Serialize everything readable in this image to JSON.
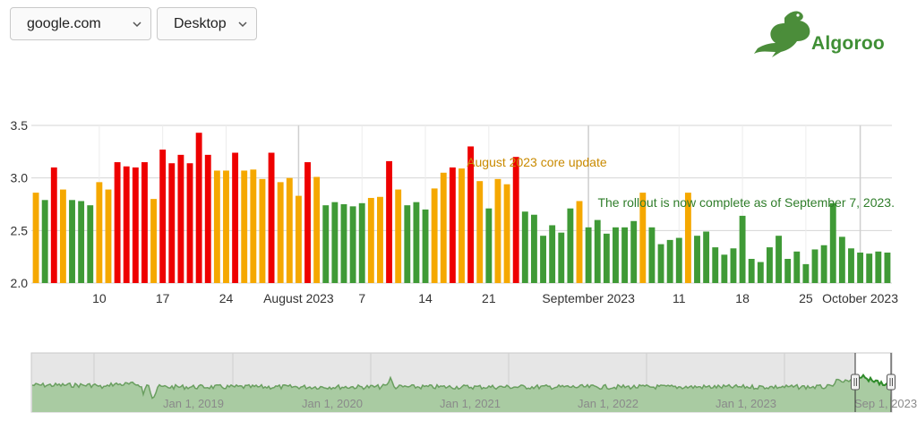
{
  "controls": {
    "site": "google.com",
    "device": "Desktop"
  },
  "logo": {
    "text": "Algoroo",
    "icon": "kangaroo-icon"
  },
  "colors": {
    "red": "#ee0000",
    "orange": "#f5a800",
    "green": "#3f9a36",
    "annotation_orange": "#c98a00",
    "annotation_green": "#2f7d2a"
  },
  "chart_data": {
    "type": "bar",
    "ylim": [
      2.0,
      3.5
    ],
    "yticks": [
      2.0,
      2.5,
      3.0,
      3.5
    ],
    "grid": true,
    "xticks": [
      {
        "label": "10",
        "index": 7
      },
      {
        "label": "17",
        "index": 14
      },
      {
        "label": "24",
        "index": 21
      },
      {
        "label": "August 2023",
        "index": 29
      },
      {
        "label": "7",
        "index": 36
      },
      {
        "label": "14",
        "index": 43
      },
      {
        "label": "21",
        "index": 50
      },
      {
        "label": "September 2023",
        "index": 61
      },
      {
        "label": "11",
        "index": 71
      },
      {
        "label": "18",
        "index": 78
      },
      {
        "label": "25",
        "index": 85
      },
      {
        "label": "October 2023",
        "index": 91
      }
    ],
    "bars": [
      {
        "v": 2.86,
        "c": "orange"
      },
      {
        "v": 2.79,
        "c": "green"
      },
      {
        "v": 3.1,
        "c": "red"
      },
      {
        "v": 2.89,
        "c": "orange"
      },
      {
        "v": 2.79,
        "c": "green"
      },
      {
        "v": 2.78,
        "c": "green"
      },
      {
        "v": 2.74,
        "c": "green"
      },
      {
        "v": 2.96,
        "c": "orange"
      },
      {
        "v": 2.89,
        "c": "orange"
      },
      {
        "v": 3.15,
        "c": "red"
      },
      {
        "v": 3.11,
        "c": "red"
      },
      {
        "v": 3.1,
        "c": "red"
      },
      {
        "v": 3.15,
        "c": "red"
      },
      {
        "v": 2.8,
        "c": "orange"
      },
      {
        "v": 3.27,
        "c": "red"
      },
      {
        "v": 3.14,
        "c": "red"
      },
      {
        "v": 3.22,
        "c": "red"
      },
      {
        "v": 3.14,
        "c": "red"
      },
      {
        "v": 3.43,
        "c": "red"
      },
      {
        "v": 3.22,
        "c": "red"
      },
      {
        "v": 3.07,
        "c": "orange"
      },
      {
        "v": 3.07,
        "c": "orange"
      },
      {
        "v": 3.24,
        "c": "red"
      },
      {
        "v": 3.07,
        "c": "orange"
      },
      {
        "v": 3.08,
        "c": "orange"
      },
      {
        "v": 2.99,
        "c": "orange"
      },
      {
        "v": 3.24,
        "c": "red"
      },
      {
        "v": 2.96,
        "c": "orange"
      },
      {
        "v": 3.0,
        "c": "orange"
      },
      {
        "v": 2.83,
        "c": "orange"
      },
      {
        "v": 3.15,
        "c": "red"
      },
      {
        "v": 3.01,
        "c": "orange"
      },
      {
        "v": 2.74,
        "c": "green"
      },
      {
        "v": 2.77,
        "c": "green"
      },
      {
        "v": 2.75,
        "c": "green"
      },
      {
        "v": 2.73,
        "c": "green"
      },
      {
        "v": 2.76,
        "c": "green"
      },
      {
        "v": 2.81,
        "c": "orange"
      },
      {
        "v": 2.82,
        "c": "orange"
      },
      {
        "v": 3.16,
        "c": "red"
      },
      {
        "v": 2.89,
        "c": "orange"
      },
      {
        "v": 2.74,
        "c": "green"
      },
      {
        "v": 2.77,
        "c": "green"
      },
      {
        "v": 2.7,
        "c": "green"
      },
      {
        "v": 2.9,
        "c": "orange"
      },
      {
        "v": 3.05,
        "c": "orange"
      },
      {
        "v": 3.1,
        "c": "red"
      },
      {
        "v": 3.09,
        "c": "orange"
      },
      {
        "v": 3.3,
        "c": "red"
      },
      {
        "v": 2.97,
        "c": "orange"
      },
      {
        "v": 2.71,
        "c": "green"
      },
      {
        "v": 2.99,
        "c": "orange"
      },
      {
        "v": 2.94,
        "c": "orange"
      },
      {
        "v": 3.2,
        "c": "red"
      },
      {
        "v": 2.68,
        "c": "green"
      },
      {
        "v": 2.65,
        "c": "green"
      },
      {
        "v": 2.45,
        "c": "green"
      },
      {
        "v": 2.55,
        "c": "green"
      },
      {
        "v": 2.48,
        "c": "green"
      },
      {
        "v": 2.71,
        "c": "green"
      },
      {
        "v": 2.78,
        "c": "orange"
      },
      {
        "v": 2.53,
        "c": "green"
      },
      {
        "v": 2.6,
        "c": "green"
      },
      {
        "v": 2.47,
        "c": "green"
      },
      {
        "v": 2.53,
        "c": "green"
      },
      {
        "v": 2.53,
        "c": "green"
      },
      {
        "v": 2.59,
        "c": "green"
      },
      {
        "v": 2.86,
        "c": "orange"
      },
      {
        "v": 2.53,
        "c": "green"
      },
      {
        "v": 2.37,
        "c": "green"
      },
      {
        "v": 2.41,
        "c": "green"
      },
      {
        "v": 2.43,
        "c": "green"
      },
      {
        "v": 2.86,
        "c": "orange"
      },
      {
        "v": 2.45,
        "c": "green"
      },
      {
        "v": 2.49,
        "c": "green"
      },
      {
        "v": 2.34,
        "c": "green"
      },
      {
        "v": 2.27,
        "c": "green"
      },
      {
        "v": 2.33,
        "c": "green"
      },
      {
        "v": 2.64,
        "c": "green"
      },
      {
        "v": 2.23,
        "c": "green"
      },
      {
        "v": 2.2,
        "c": "green"
      },
      {
        "v": 2.34,
        "c": "green"
      },
      {
        "v": 2.45,
        "c": "green"
      },
      {
        "v": 2.23,
        "c": "green"
      },
      {
        "v": 2.3,
        "c": "green"
      },
      {
        "v": 2.18,
        "c": "green"
      },
      {
        "v": 2.32,
        "c": "green"
      },
      {
        "v": 2.36,
        "c": "green"
      },
      {
        "v": 2.76,
        "c": "green"
      },
      {
        "v": 2.44,
        "c": "green"
      },
      {
        "v": 2.33,
        "c": "green"
      },
      {
        "v": 2.29,
        "c": "green"
      },
      {
        "v": 2.28,
        "c": "green"
      },
      {
        "v": 2.3,
        "c": "green"
      },
      {
        "v": 2.29,
        "c": "green"
      }
    ],
    "annotations": [
      {
        "text": "August 2023 core update",
        "color": "orange",
        "start_index": 53,
        "end_index": 74
      },
      {
        "text": "The rollout is now complete as of September 7, 2023.",
        "color": "green",
        "start_index": 64,
        "end_index": 109
      }
    ]
  },
  "navigator": {
    "labels": [
      "Jan 1, 2019",
      "Jan 1, 2020",
      "Jan 1, 2021",
      "Jan 1, 2022",
      "Jan 1, 2023",
      "Sep 1, 2023"
    ]
  }
}
